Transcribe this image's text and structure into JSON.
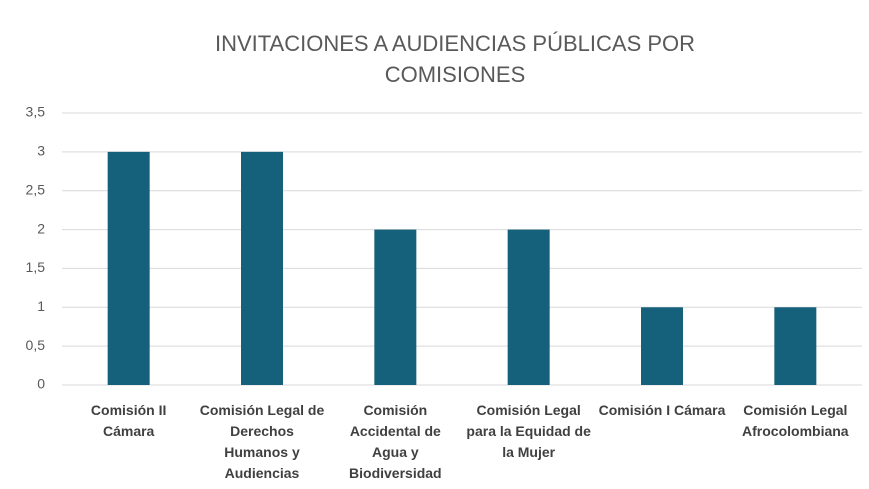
{
  "chart_data": {
    "type": "bar",
    "title": "INVITACIONES A AUDIENCIAS PÚBLICAS POR COMISIONES",
    "categories": [
      "Comisión II Cámara",
      "Comisión Legal de Derechos Humanos y Audiencias",
      "Comisión Accidental de Agua y Biodiversidad",
      "Comisión Legal para la Equidad de la Mujer",
      "Comisión I Cámara",
      "Comisión Legal Afrocolombiana"
    ],
    "values": [
      3,
      3,
      2,
      2,
      1,
      1
    ],
    "color": "#15607a",
    "ylim": [
      0,
      3.5
    ],
    "yticks": [
      0,
      {
        "value": 0.5,
        "label": "0,5"
      },
      1,
      {
        "value": 1.5,
        "label": "1,5"
      },
      2,
      {
        "value": 2.5,
        "label": "2,5"
      },
      3,
      {
        "value": 3.5,
        "label": "3,5"
      }
    ],
    "grid": true
  }
}
